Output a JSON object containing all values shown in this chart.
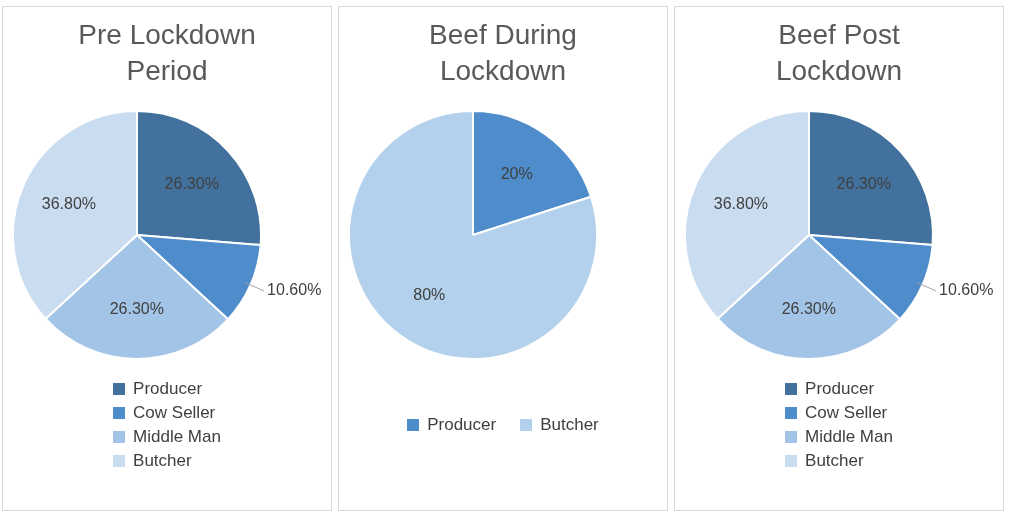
{
  "chart_data": [
    {
      "type": "pie",
      "title": "Pre Lockdown Period",
      "categories": [
        "Producer",
        "Cow Seller",
        "Middle Man",
        "Butcher"
      ],
      "values": [
        26.3,
        10.6,
        26.3,
        36.8
      ],
      "colors": [
        "#41719c",
        "#4e8ccb",
        "#a2c4e6",
        "#c9dcf0"
      ],
      "value_labels": [
        "26.30%",
        "10.60%",
        "26.30%",
        "36.80%"
      ],
      "legend": "bottom"
    },
    {
      "type": "pie",
      "title": "Beef During Lockdown",
      "categories": [
        "Producer",
        "Butcher"
      ],
      "values": [
        20,
        80
      ],
      "colors": [
        "#4e8ccb",
        "#b3d0ec"
      ],
      "value_labels": [
        "20%",
        "80%"
      ],
      "legend": "bottom"
    },
    {
      "type": "pie",
      "title": "Beef Post Lockdown",
      "categories": [
        "Producer",
        "Cow Seller",
        "Middle Man",
        "Butcher"
      ],
      "values": [
        26.3,
        10.6,
        26.3,
        36.8
      ],
      "colors": [
        "#41719c",
        "#4e8ccb",
        "#a2c4e6",
        "#c9dcf0"
      ],
      "value_labels": [
        "26.30%",
        "10.60%",
        "26.30%",
        "36.80%"
      ],
      "legend": "bottom"
    }
  ]
}
